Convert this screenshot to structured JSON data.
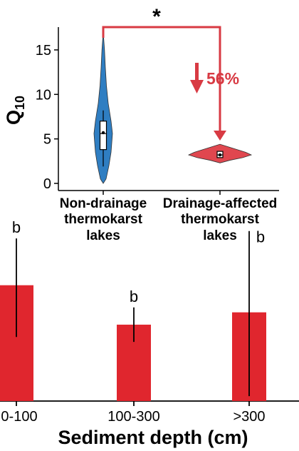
{
  "chart_data": [
    {
      "type": "violin",
      "ylabel": "Q",
      "ylabel_sub": "10",
      "ylim": [
        0,
        17
      ],
      "yticks": [
        "0",
        "5",
        "10",
        "15"
      ],
      "categories": [
        [
          "Non-drainage",
          "thermokarst",
          "lakes"
        ],
        [
          "Drainage-affected",
          "thermokarst",
          "lakes"
        ]
      ],
      "groups": [
        {
          "color": "#2f7ec2",
          "min": 0.0,
          "q1": 3.8,
          "median": 5.6,
          "q3": 7.0,
          "max": 17.0,
          "mean": 5.7,
          "whisker_low": 1.9,
          "whisker_high": 8.2
        },
        {
          "color": "#e0474f",
          "min": 2.3,
          "q1": 2.9,
          "median": 3.2,
          "q3": 3.6,
          "max": 4.4,
          "mean": 3.2,
          "whisker_low": 2.9,
          "whisker_high": 3.6
        }
      ],
      "annotations": {
        "significance": "*",
        "change_label": "56%",
        "change_direction": "down"
      },
      "annotation_color": "#d83a43"
    },
    {
      "type": "bar",
      "xlabel": "Sediment depth (cm)",
      "categories": [
        "0-100",
        "100-300",
        ">300"
      ],
      "values": [
        4.7,
        3.1,
        3.6
      ],
      "error_low": [
        2.6,
        2.4,
        0.2
      ],
      "error_high": [
        6.6,
        3.8,
        6.9
      ],
      "ylim": [
        0,
        7.5
      ],
      "group_letters": [
        "b",
        "b",
        "b"
      ],
      "bar_color": "#e0262e"
    }
  ]
}
